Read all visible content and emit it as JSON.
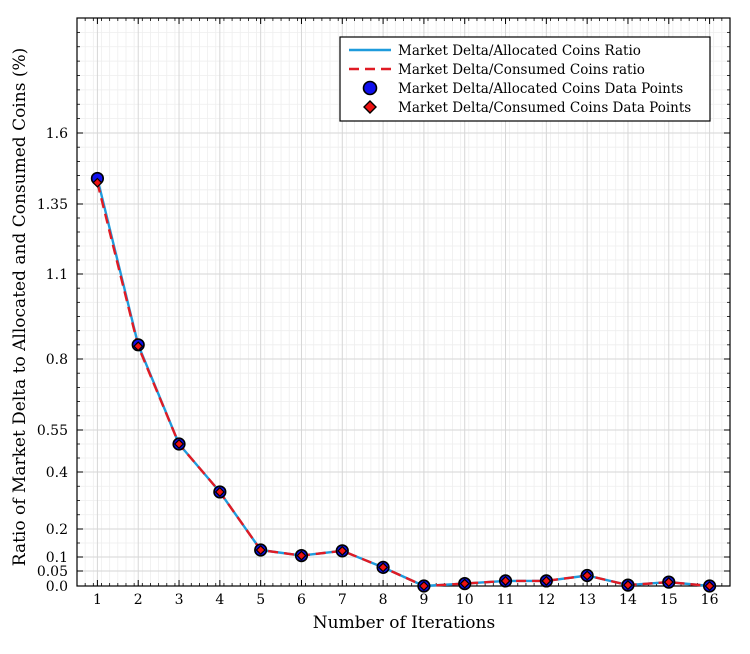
{
  "chart_data": {
    "type": "line",
    "xlabel": "Number of Iterations",
    "ylabel": "Ratio of Market Delta to Allocated and Consumed Coins (%)",
    "x": [
      1,
      2,
      3,
      4,
      5,
      6,
      7,
      8,
      9,
      10,
      11,
      12,
      13,
      14,
      15,
      16
    ],
    "xlim": [
      0.5,
      16.5
    ],
    "ylim": [
      0,
      2.0
    ],
    "yticks": [
      0.0,
      0.05,
      0.1,
      0.2,
      0.4,
      0.55,
      0.8,
      1.1,
      1.35,
      1.6
    ],
    "ytick_labels": [
      "0.0",
      "0.05",
      "0.1",
      "0.2",
      "0.4",
      "0.55",
      "0.8",
      "1.1",
      "1.35",
      "1.6"
    ],
    "grid": true,
    "legend_position": "top-right",
    "series": [
      {
        "name": "Market Delta/Allocated Coins Ratio",
        "style": "solid",
        "color": "#1e9bdc",
        "values": [
          1.44,
          0.85,
          0.5,
          0.33,
          0.125,
          0.105,
          0.122,
          0.063,
          0.0,
          0.008,
          0.017,
          0.017,
          0.035,
          0.003,
          0.013,
          0.0
        ]
      },
      {
        "name": "Market Delta/Consumed Coins ratio",
        "style": "dashed",
        "color": "#e01b24",
        "values": [
          1.425,
          0.845,
          0.5,
          0.33,
          0.125,
          0.105,
          0.122,
          0.063,
          0.0,
          0.008,
          0.017,
          0.017,
          0.035,
          0.003,
          0.013,
          0.0
        ]
      },
      {
        "name": "Market Delta/Allocated Coins Data Points",
        "marker": "circle",
        "color": "#1010ee",
        "values": [
          1.44,
          0.85,
          0.5,
          0.33,
          0.125,
          0.105,
          0.122,
          0.063,
          0.0,
          0.008,
          0.017,
          0.017,
          0.035,
          0.003,
          0.013,
          0.0
        ]
      },
      {
        "name": "Market Delta/Consumed Coins Data Points",
        "marker": "diamond",
        "color": "#ee1111",
        "values": [
          1.425,
          0.845,
          0.5,
          0.33,
          0.125,
          0.105,
          0.122,
          0.063,
          0.0,
          0.008,
          0.017,
          0.017,
          0.035,
          0.003,
          0.013,
          0.0
        ]
      }
    ]
  }
}
